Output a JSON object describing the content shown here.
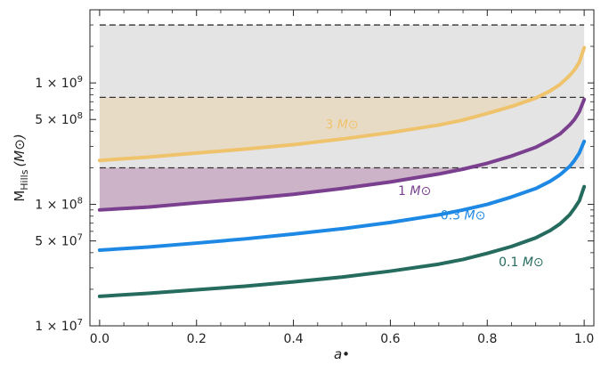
{
  "chart_data": {
    "type": "line",
    "xlabel": "a•",
    "ylabel": "M_Hills (M⊙)",
    "ylabel_main": "M",
    "ylabel_sub": "Hills",
    "ylabel_unit": "(M⊙)",
    "xlim": [
      -0.02,
      1.02
    ],
    "ylim": [
      10000000.0,
      4000000000.0
    ],
    "yscale": "log",
    "grid": false,
    "x_ticks": [
      {
        "value": 0.0,
        "label": "0.0"
      },
      {
        "value": 0.2,
        "label": "0.2"
      },
      {
        "value": 0.4,
        "label": "0.4"
      },
      {
        "value": 0.6,
        "label": "0.6"
      },
      {
        "value": 0.8,
        "label": "0.8"
      },
      {
        "value": 1.0,
        "label": "1.0"
      }
    ],
    "y_ticks": [
      {
        "value": 10000000.0,
        "label_mantissa": "1 × 10",
        "label_exp": "7"
      },
      {
        "value": 50000000.0,
        "label_mantissa": "5 × 10",
        "label_exp": "7"
      },
      {
        "value": 100000000.0,
        "label_mantissa": "1 × 10",
        "label_exp": "8"
      },
      {
        "value": 500000000.0,
        "label_mantissa": "5 × 10",
        "label_exp": "8"
      },
      {
        "value": 1000000000.0,
        "label_mantissa": "1 × 10",
        "label_exp": "9"
      }
    ],
    "y_minor_ticks": [
      20000000.0,
      30000000.0,
      40000000.0,
      60000000.0,
      70000000.0,
      80000000.0,
      90000000.0,
      200000000.0,
      300000000.0,
      400000000.0,
      600000000.0,
      700000000.0,
      800000000.0,
      900000000.0,
      2000000000.0,
      3000000000.0
    ],
    "x_minor_ticks": [
      0.05,
      0.1,
      0.15,
      0.25,
      0.3,
      0.35,
      0.45,
      0.5,
      0.55,
      0.65,
      0.7,
      0.75,
      0.85,
      0.9,
      0.95
    ],
    "reference_lines": [
      {
        "y": 200000000.0,
        "style": "dashed",
        "color": "#333333"
      },
      {
        "y": 760000000.0,
        "style": "dashed",
        "color": "#333333"
      },
      {
        "y": 3000000000.0,
        "style": "dashed",
        "color": "#333333"
      }
    ],
    "shaded_band": {
      "y_low": 200000000.0,
      "y_high": 3000000000.0,
      "color": "#e4e4e4"
    },
    "fill_between": [
      {
        "series": "3 M⊙",
        "to_y": 760000000.0,
        "color": "#e8dbc6"
      },
      {
        "series": "1 M⊙",
        "to_y": 200000000.0,
        "color": "#cdb3c7"
      }
    ],
    "x": [
      0.0,
      0.1,
      0.2,
      0.3,
      0.4,
      0.5,
      0.6,
      0.7,
      0.75,
      0.8,
      0.85,
      0.9,
      0.93,
      0.95,
      0.97,
      0.98,
      0.99,
      1.0
    ],
    "series": [
      {
        "name": "3 M⊙",
        "label_text": "3 ",
        "label_unit": "M⊙",
        "color": "#efc36c",
        "values": [
          230000000.0,
          245000000.0,
          265000000.0,
          285000000.0,
          310000000.0,
          345000000.0,
          390000000.0,
          450000000.0,
          495000000.0,
          560000000.0,
          640000000.0,
          750000000.0,
          860000000.0,
          970000000.0,
          1150000000.0,
          1280000000.0,
          1480000000.0,
          1950000000.0
        ]
      },
      {
        "name": "1 M⊙",
        "label_text": "1 ",
        "label_unit": "M⊙",
        "color": "#7a3f8f",
        "values": [
          90000000.0,
          95000000.0,
          103000000.0,
          111000000.0,
          121000000.0,
          135000000.0,
          153000000.0,
          178000000.0,
          195000000.0,
          218000000.0,
          250000000.0,
          295000000.0,
          340000000.0,
          380000000.0,
          450000000.0,
          500000000.0,
          580000000.0,
          730000000.0
        ]
      },
      {
        "name": "0.3 M⊙",
        "label_text": "0.3 ",
        "label_unit": "M⊙",
        "color": "#1e88e5",
        "values": [
          42000000.0,
          44500000.0,
          48000000.0,
          52000000.0,
          57000000.0,
          63000000.0,
          71000000.0,
          82000000.0,
          90000000.0,
          100000000.0,
          115000000.0,
          135000000.0,
          155000000.0,
          175000000.0,
          205000000.0,
          230000000.0,
          265000000.0,
          330000000.0
        ]
      },
      {
        "name": "0.1 M⊙",
        "label_text": "0.1 ",
        "label_unit": "M⊙",
        "color": "#256b5e",
        "values": [
          17500000.0,
          18500000.0,
          19800000.0,
          21200000.0,
          23000000.0,
          25200000.0,
          28200000.0,
          32200000.0,
          35200000.0,
          39500000.0,
          45000000.0,
          53000000.0,
          61000000.0,
          69000000.0,
          82000000.0,
          93000000.0,
          107000000.0,
          140000000.0
        ]
      }
    ],
    "annotations": [
      {
        "series_index": 0,
        "x": 0.5,
        "y": 420000000.0
      },
      {
        "series_index": 1,
        "x": 0.65,
        "y": 120000000.0
      },
      {
        "series_index": 2,
        "x": 0.75,
        "y": 75000000.0
      },
      {
        "series_index": 3,
        "x": 0.87,
        "y": 31000000.0
      }
    ]
  }
}
